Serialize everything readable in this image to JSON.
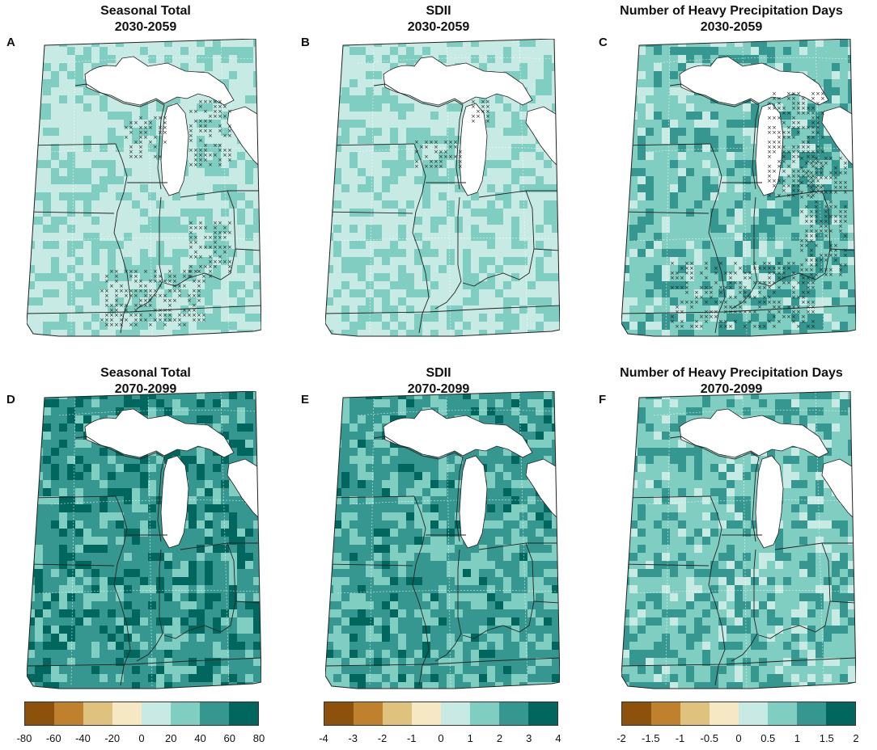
{
  "panels": [
    {
      "letter": "A",
      "title1": "Seasonal Total",
      "title2": "2030-2059",
      "shade": "low",
      "hatch": "A"
    },
    {
      "letter": "B",
      "title1": "SDII",
      "title2": "2030-2059",
      "shade": "low",
      "hatch": "B"
    },
    {
      "letter": "C",
      "title1": "Number of Heavy Precipitation Days",
      "title2": "2030-2059",
      "shade": "mid",
      "hatch": "C"
    },
    {
      "letter": "D",
      "title1": "Seasonal Total",
      "title2": "2070-2099",
      "shade": "high",
      "hatch": "none"
    },
    {
      "letter": "E",
      "title1": "SDII",
      "title2": "2070-2099",
      "shade": "midhigh",
      "hatch": "none"
    },
    {
      "letter": "F",
      "title1": "Number of Heavy Precipitation Days",
      "title2": "2070-2099",
      "shade": "mid",
      "hatch": "none"
    }
  ],
  "colorbar_colors": [
    "#8c510a",
    "#bf812d",
    "#dfc27d",
    "#f6e8c3",
    "#c7eae5",
    "#80cdc1",
    "#35978f",
    "#01665e"
  ],
  "colorbars": [
    {
      "ticks": [
        "-80",
        "-60",
        "-40",
        "-20",
        "0",
        "20",
        "40",
        "60",
        "80"
      ]
    },
    {
      "ticks": [
        "-4",
        "-3",
        "-2",
        "-1",
        "0",
        "1",
        "2",
        "3",
        "4"
      ]
    },
    {
      "ticks": [
        "-2",
        "-1.5",
        "-1",
        "-0.5",
        "0",
        "0.5",
        "1",
        "1.5",
        "2"
      ]
    }
  ]
}
